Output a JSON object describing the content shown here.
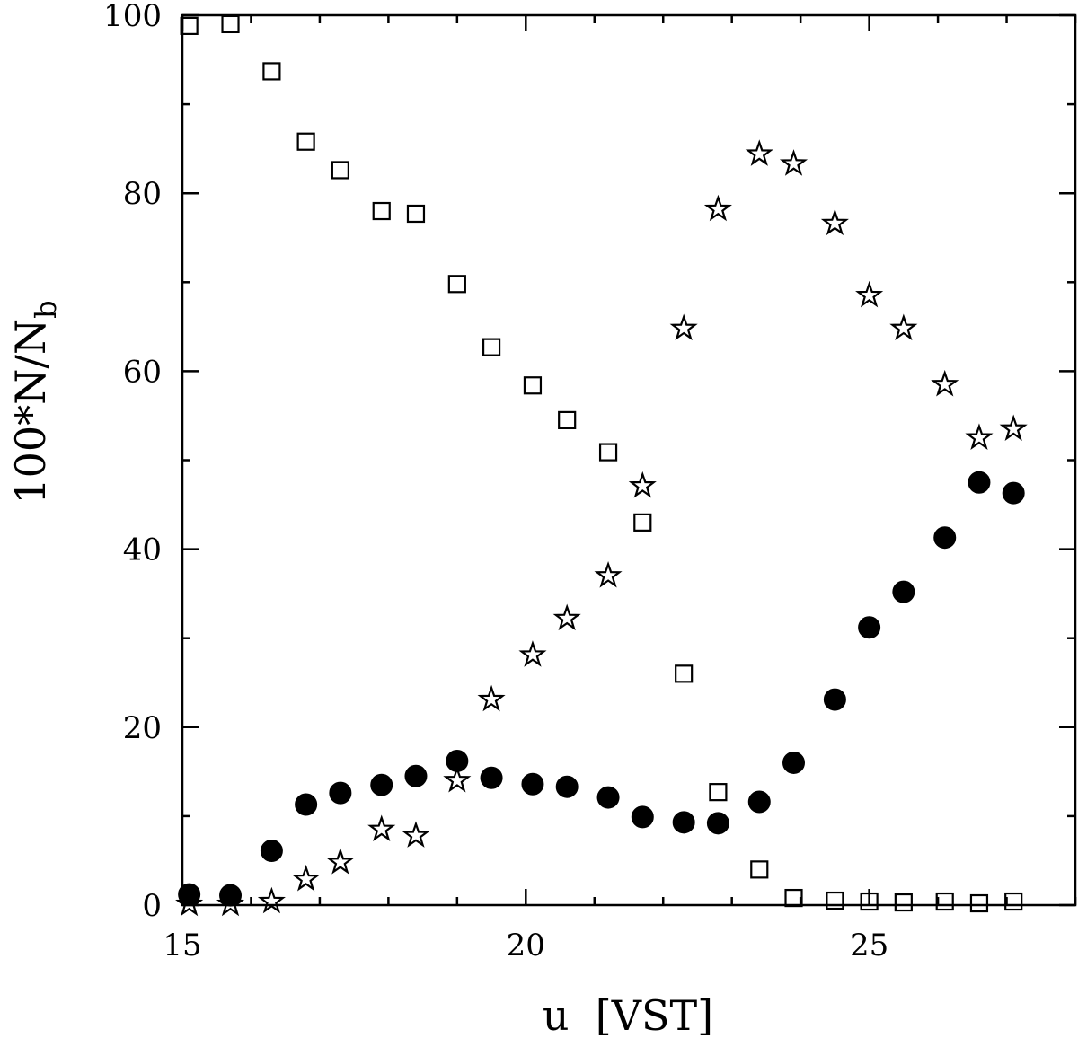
{
  "chart_data": {
    "type": "scatter",
    "xlabel": "u  [VST]",
    "ylabel": "100*N/N",
    "ylabel_subscript": "b",
    "xlim": [
      15,
      28
    ],
    "ylim": [
      0,
      100
    ],
    "x_ticks_major": [
      15,
      20,
      25
    ],
    "x_tick_labels": [
      "15",
      "20",
      "25"
    ],
    "x_tick_minor_step": 1,
    "y_ticks_major": [
      0,
      20,
      40,
      60,
      80,
      100
    ],
    "y_tick_labels": [
      "0",
      "20",
      "40",
      "60",
      "80",
      "100"
    ],
    "y_tick_minor_step": 10,
    "grid": false,
    "legend": "none",
    "series": [
      {
        "marker": "open-square",
        "x": [
          15.1,
          15.7,
          16.3,
          16.8,
          17.3,
          17.9,
          18.4,
          19.0,
          19.5,
          20.1,
          20.6,
          21.2,
          21.7,
          22.3,
          22.8,
          23.4,
          23.9,
          24.5,
          25.0,
          25.5,
          26.1,
          26.6,
          27.1
        ],
        "y": [
          98.8,
          99.0,
          93.7,
          85.8,
          82.6,
          78.0,
          77.7,
          69.8,
          62.7,
          58.4,
          54.5,
          50.9,
          43.0,
          26.0,
          12.7,
          4.0,
          0.8,
          0.5,
          0.4,
          0.3,
          0.4,
          0.2,
          0.4
        ]
      },
      {
        "marker": "open-star",
        "x": [
          15.1,
          15.7,
          16.3,
          16.8,
          17.3,
          17.9,
          18.4,
          19.0,
          19.5,
          20.1,
          20.6,
          21.2,
          21.7,
          22.3,
          22.8,
          23.4,
          23.9,
          24.5,
          25.0,
          25.5,
          26.1,
          26.6,
          27.1
        ],
        "y": [
          0.1,
          0.1,
          0.4,
          2.9,
          4.8,
          8.5,
          7.8,
          14.0,
          23.1,
          28.1,
          32.2,
          37.0,
          47.1,
          64.8,
          78.2,
          84.4,
          83.3,
          76.6,
          68.5,
          64.8,
          58.5,
          52.5,
          53.5
        ]
      },
      {
        "marker": "filled-circle",
        "x": [
          15.1,
          15.7,
          16.3,
          16.8,
          17.3,
          17.9,
          18.4,
          19.0,
          19.5,
          20.1,
          20.6,
          21.2,
          21.7,
          22.3,
          22.8,
          23.4,
          23.9,
          24.5,
          25.0,
          25.5,
          26.1,
          26.6,
          27.1
        ],
        "y": [
          1.2,
          1.1,
          6.1,
          11.3,
          12.6,
          13.5,
          14.5,
          16.2,
          14.3,
          13.6,
          13.3,
          12.1,
          9.9,
          9.3,
          9.2,
          11.6,
          16.0,
          23.1,
          31.2,
          35.2,
          41.3,
          47.5,
          46.3
        ]
      }
    ]
  }
}
